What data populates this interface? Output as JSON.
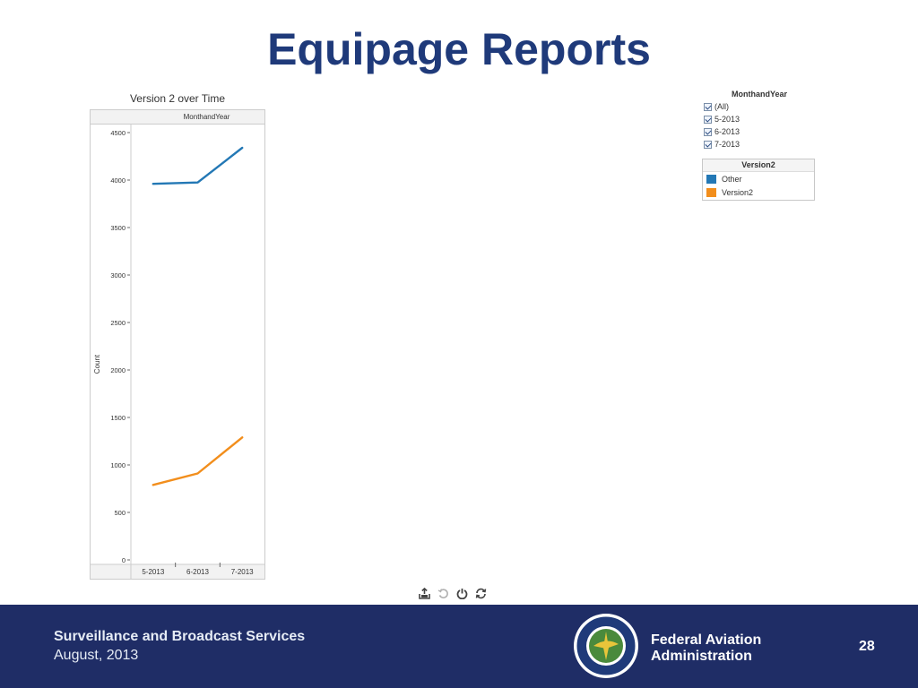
{
  "slide": {
    "title": "Equipage Reports",
    "footer_org": "Surveillance and Broadcast Services",
    "footer_date": "August, 2013",
    "agency_line1": "Federal Aviation",
    "agency_line2": "Administration",
    "page_number": "28"
  },
  "filter": {
    "title": "MonthandYear",
    "items": [
      {
        "label": "(All)",
        "checked": true
      },
      {
        "label": "5-2013",
        "checked": true
      },
      {
        "label": "6-2013",
        "checked": true
      },
      {
        "label": "7-2013",
        "checked": true
      }
    ]
  },
  "legend": {
    "title": "Version2",
    "items": [
      {
        "label": "Other",
        "color": "#2378b5"
      },
      {
        "label": "Version2",
        "color": "#f28e1c"
      }
    ]
  },
  "toolbar": {
    "icons": [
      "export-icon",
      "revert-icon",
      "power-icon",
      "refresh-icon"
    ]
  },
  "chart_data": {
    "type": "line",
    "title": "Version 2 over Time",
    "column_header": "MonthandYear",
    "xlabel": "",
    "ylabel": "Count",
    "categories": [
      "5-2013",
      "6-2013",
      "7-2013"
    ],
    "ylim": [
      0,
      4500
    ],
    "yticks": [
      0,
      500,
      1000,
      1500,
      2000,
      2500,
      3000,
      3500,
      4000,
      4500
    ],
    "grid": false,
    "legend_position": "right",
    "series": [
      {
        "name": "Other",
        "color": "#2378b5",
        "values": [
          3960,
          3975,
          4340
        ]
      },
      {
        "name": "Version2",
        "color": "#f28e1c",
        "values": [
          790,
          910,
          1290
        ]
      }
    ]
  }
}
